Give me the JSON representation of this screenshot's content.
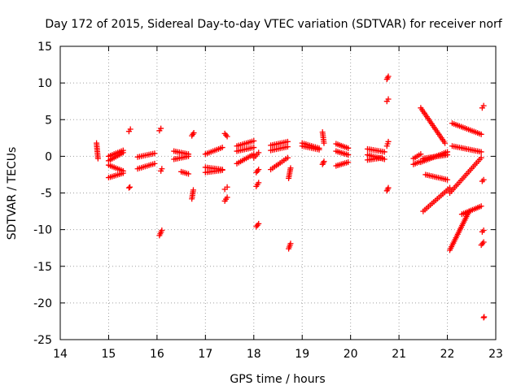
{
  "chart_data": {
    "type": "scatter",
    "title": "Day 172 of 2015, Sidereal Day-to-day VTEC variation (SDTVAR) for receiver norf",
    "xlabel": "GPS time / hours",
    "ylabel": "SDTVAR / TECUs",
    "xlim": [
      14,
      23
    ],
    "ylim": [
      -25,
      15
    ],
    "xticks": [
      14,
      15,
      16,
      17,
      18,
      19,
      20,
      21,
      22,
      23
    ],
    "yticks": [
      -25,
      -20,
      -15,
      -10,
      -5,
      0,
      5,
      10,
      15
    ],
    "grid": true,
    "marker": "+",
    "color": "#ff0000",
    "series": [
      {
        "name": "SDTVAR",
        "segments": [
          {
            "x0": 14.75,
            "x1": 14.78,
            "y0": 1.8,
            "y1": -0.3
          },
          {
            "x0": 15.0,
            "x1": 15.3,
            "y0": 0.0,
            "y1": 0.8
          },
          {
            "x0": 15.0,
            "x1": 15.3,
            "y0": -0.6,
            "y1": 0.5
          },
          {
            "x0": 15.0,
            "x1": 15.3,
            "y0": -2.9,
            "y1": -2.3
          },
          {
            "x0": 15.0,
            "x1": 15.3,
            "y0": -1.2,
            "y1": -2.0
          },
          {
            "x0": 15.42,
            "x1": 15.45,
            "y0": 3.4,
            "y1": 3.7
          },
          {
            "x0": 15.42,
            "x1": 15.44,
            "y0": -4.3,
            "y1": -4.2
          },
          {
            "x0": 15.6,
            "x1": 15.95,
            "y0": -0.1,
            "y1": 0.4
          },
          {
            "x0": 15.6,
            "x1": 15.95,
            "y0": -1.7,
            "y1": -1.0
          },
          {
            "x0": 16.05,
            "x1": 16.08,
            "y0": 3.5,
            "y1": 3.8
          },
          {
            "x0": 16.05,
            "x1": 16.1,
            "y0": -10.8,
            "y1": -10.1
          },
          {
            "x0": 16.08,
            "x1": 16.1,
            "y0": -2.0,
            "y1": -1.7
          },
          {
            "x0": 16.35,
            "x1": 16.65,
            "y0": 0.7,
            "y1": 0.3
          },
          {
            "x0": 16.35,
            "x1": 16.65,
            "y0": -0.4,
            "y1": 0.0
          },
          {
            "x0": 16.5,
            "x1": 16.65,
            "y0": -2.1,
            "y1": -2.4
          },
          {
            "x0": 16.72,
            "x1": 16.76,
            "y0": 2.8,
            "y1": 3.2
          },
          {
            "x0": 16.72,
            "x1": 16.75,
            "y0": -5.8,
            "y1": -4.6
          },
          {
            "x0": 17.0,
            "x1": 17.35,
            "y0": 0.3,
            "y1": 1.2
          },
          {
            "x0": 17.0,
            "x1": 17.35,
            "y0": -1.5,
            "y1": -1.8
          },
          {
            "x0": 17.0,
            "x1": 17.35,
            "y0": -2.2,
            "y1": -1.9
          },
          {
            "x0": 17.4,
            "x1": 17.45,
            "y0": 3.1,
            "y1": 2.7
          },
          {
            "x0": 17.4,
            "x1": 17.45,
            "y0": -4.5,
            "y1": -4.2
          },
          {
            "x0": 17.4,
            "x1": 17.45,
            "y0": -6.1,
            "y1": -5.6
          },
          {
            "x0": 17.65,
            "x1": 18.0,
            "y0": 1.4,
            "y1": 2.1
          },
          {
            "x0": 17.65,
            "x1": 18.0,
            "y0": 0.7,
            "y1": 1.2
          },
          {
            "x0": 17.65,
            "x1": 18.0,
            "y0": -1.0,
            "y1": 0.3
          },
          {
            "x0": 18.0,
            "x1": 18.1,
            "y0": -0.2,
            "y1": 0.5
          },
          {
            "x0": 18.05,
            "x1": 18.1,
            "y0": -2.2,
            "y1": -1.8
          },
          {
            "x0": 18.05,
            "x1": 18.1,
            "y0": -4.1,
            "y1": -3.6
          },
          {
            "x0": 18.05,
            "x1": 18.1,
            "y0": -9.6,
            "y1": -9.2
          },
          {
            "x0": 18.35,
            "x1": 18.7,
            "y0": 1.5,
            "y1": 2.0
          },
          {
            "x0": 18.35,
            "x1": 18.7,
            "y0": 0.8,
            "y1": 1.3
          },
          {
            "x0": 18.35,
            "x1": 18.7,
            "y0": -1.8,
            "y1": -0.2
          },
          {
            "x0": 18.72,
            "x1": 18.76,
            "y0": -3.0,
            "y1": -1.6
          },
          {
            "x0": 18.72,
            "x1": 18.76,
            "y0": -12.6,
            "y1": -11.9
          },
          {
            "x0": 19.0,
            "x1": 19.35,
            "y0": 1.8,
            "y1": 1.1
          },
          {
            "x0": 19.0,
            "x1": 19.35,
            "y0": 1.4,
            "y1": 0.9
          },
          {
            "x0": 19.42,
            "x1": 19.45,
            "y0": 3.3,
            "y1": 1.8
          },
          {
            "x0": 19.42,
            "x1": 19.45,
            "y0": -1.1,
            "y1": -0.7
          },
          {
            "x0": 19.7,
            "x1": 19.95,
            "y0": 1.7,
            "y1": 1.1
          },
          {
            "x0": 19.7,
            "x1": 19.95,
            "y0": 0.7,
            "y1": 0.2
          },
          {
            "x0": 19.7,
            "x1": 19.95,
            "y0": -1.3,
            "y1": -0.8
          },
          {
            "x0": 20.35,
            "x1": 20.7,
            "y0": 1.0,
            "y1": 0.6
          },
          {
            "x0": 20.35,
            "x1": 20.7,
            "y0": 0.2,
            "y1": -0.4
          },
          {
            "x0": 20.35,
            "x1": 20.65,
            "y0": -0.5,
            "y1": -0.2
          },
          {
            "x0": 20.75,
            "x1": 20.78,
            "y0": 10.5,
            "y1": 10.9
          },
          {
            "x0": 20.75,
            "x1": 20.78,
            "y0": 7.5,
            "y1": 7.8
          },
          {
            "x0": 20.75,
            "x1": 20.78,
            "y0": 1.4,
            "y1": 2.0
          },
          {
            "x0": 20.75,
            "x1": 20.78,
            "y0": -4.7,
            "y1": -4.3
          },
          {
            "x0": 21.3,
            "x1": 21.45,
            "y0": -0.3,
            "y1": 0.3
          },
          {
            "x0": 21.3,
            "x1": 21.45,
            "y0": -1.1,
            "y1": -0.7
          },
          {
            "x0": 21.45,
            "x1": 21.95,
            "y0": 6.6,
            "y1": 1.8
          },
          {
            "x0": 21.45,
            "x1": 22.0,
            "y0": -0.8,
            "y1": 0.6
          },
          {
            "x0": 21.5,
            "x1": 22.0,
            "y0": -0.3,
            "y1": 0.2
          },
          {
            "x0": 21.55,
            "x1": 22.0,
            "y0": -2.5,
            "y1": -3.2
          },
          {
            "x0": 21.5,
            "x1": 22.05,
            "y0": -7.5,
            "y1": -4.3
          },
          {
            "x0": 22.05,
            "x1": 22.45,
            "y0": -12.8,
            "y1": -7.5
          },
          {
            "x0": 22.1,
            "x1": 22.7,
            "y0": 4.5,
            "y1": 3.0
          },
          {
            "x0": 22.1,
            "x1": 22.7,
            "y0": 1.4,
            "y1": 0.6
          },
          {
            "x0": 22.05,
            "x1": 22.7,
            "y0": -5.0,
            "y1": -0.2
          },
          {
            "x0": 22.3,
            "x1": 22.7,
            "y0": -7.9,
            "y1": -6.8
          },
          {
            "x0": 22.72,
            "x1": 22.75,
            "y0": 6.6,
            "y1": 6.9
          },
          {
            "x0": 22.72,
            "x1": 22.75,
            "y0": -3.4,
            "y1": -3.2
          },
          {
            "x0": 22.72,
            "x1": 22.75,
            "y0": -10.3,
            "y1": -10.1
          },
          {
            "x0": 22.7,
            "x1": 22.75,
            "y0": -12.1,
            "y1": -11.7
          },
          {
            "x0": 22.75,
            "x1": 22.76,
            "y0": -22.0,
            "y1": -21.9
          }
        ]
      }
    ]
  }
}
